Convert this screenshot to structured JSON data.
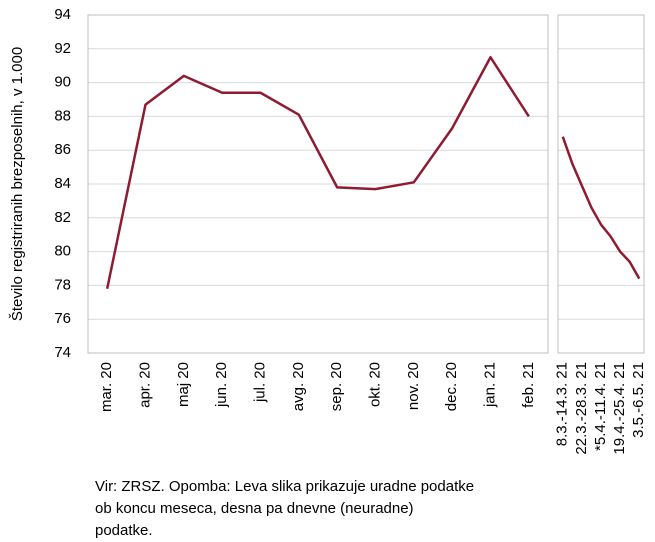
{
  "chart_data": [
    {
      "type": "line",
      "ylabel": "Število registriranih brezposelnih, v 1.000",
      "categories": [
        "mar. 20",
        "apr. 20",
        "maj 20",
        "jun. 20",
        "jul. 20",
        "avg. 20",
        "sep. 20",
        "okt. 20",
        "nov. 20",
        "dec. 20",
        "jan. 21",
        "feb. 21"
      ],
      "values": [
        77.8,
        88.7,
        90.4,
        89.4,
        89.4,
        88.1,
        83.8,
        83.7,
        84.1,
        87.3,
        91.5,
        88.0
      ],
      "color": "#8f1b32",
      "ylim": [
        74,
        94
      ],
      "yticks": [
        74,
        76,
        78,
        80,
        82,
        84,
        86,
        88,
        90,
        92,
        94
      ],
      "grid": true
    },
    {
      "type": "line",
      "categories": [
        "8.3.-14.3. 21",
        null,
        "22.3.-28.3. 21",
        null,
        "*5.4.-11.4. 21",
        null,
        "19.4.-25.4. 21",
        null,
        "3.5.-6.5. 21"
      ],
      "values": [
        86.8,
        85.2,
        83.9,
        82.6,
        81.6,
        80.9,
        80.0,
        79.4,
        78.4
      ],
      "color": "#8f1b32",
      "ylim": [
        74,
        94
      ],
      "grid": true
    }
  ],
  "note": [
    "Vir: ZRSZ. Opomba: Leva slika prikazuje uradne podatke",
    "ob koncu meseca, desna pa dnevne (neuradne)",
    "podatke."
  ]
}
